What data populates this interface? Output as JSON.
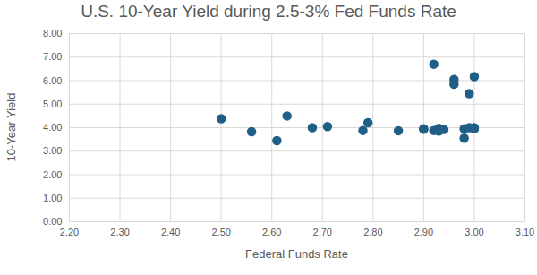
{
  "chart_data": {
    "type": "scatter",
    "title": "U.S. 10-Year Yield during 2.5-3% Fed Funds Rate",
    "x_label": "Federal Funds Rate",
    "y_label": "10-Year Yield",
    "x": [
      2.5,
      2.56,
      2.61,
      2.63,
      2.68,
      2.71,
      2.78,
      2.79,
      2.85,
      2.9,
      2.9,
      2.92,
      2.92,
      2.93,
      2.93,
      2.94,
      2.96,
      2.96,
      2.98,
      2.98,
      2.99,
      2.99,
      3.0,
      3.0,
      3.0
    ],
    "values": [
      4.38,
      3.83,
      3.45,
      4.5,
      4.0,
      4.05,
      3.88,
      4.21,
      3.87,
      3.95,
      3.93,
      6.7,
      3.88,
      3.97,
      3.86,
      3.92,
      6.05,
      5.85,
      3.55,
      3.95,
      5.45,
      4.0,
      6.17,
      4.0,
      3.95
    ],
    "color": "#1f5f86",
    "marker": "circle",
    "xlim": [
      2.2,
      3.1
    ],
    "xticks": [
      {
        "value": 2.2,
        "label": "2.20"
      },
      {
        "value": 2.3,
        "label": "2.30"
      },
      {
        "value": 2.4,
        "label": "2.40"
      },
      {
        "value": 2.5,
        "label": "2.50"
      },
      {
        "value": 2.6,
        "label": "2.60"
      },
      {
        "value": 2.7,
        "label": "2.70"
      },
      {
        "value": 2.8,
        "label": "2.80"
      },
      {
        "value": 2.9,
        "label": "2.90"
      },
      {
        "value": 3.0,
        "label": "3.00"
      },
      {
        "value": 3.1,
        "label": "3.10"
      }
    ],
    "ylim": [
      0,
      8
    ],
    "yticks": [
      {
        "value": 0,
        "label": "0.00"
      },
      {
        "value": 1,
        "label": "1.00"
      },
      {
        "value": 2,
        "label": "2.00"
      },
      {
        "value": 3,
        "label": "3.00"
      },
      {
        "value": 4,
        "label": "4.00"
      },
      {
        "value": 5,
        "label": "5.00"
      },
      {
        "value": 6,
        "label": "6.00"
      },
      {
        "value": 7,
        "label": "7.00"
      },
      {
        "value": 8,
        "label": "8.00"
      }
    ],
    "grid": true
  }
}
